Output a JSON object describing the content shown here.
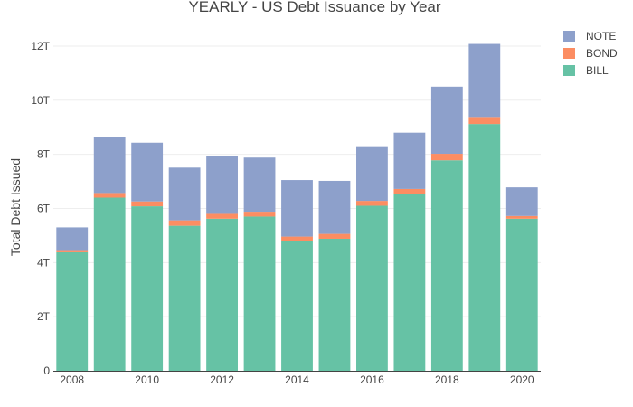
{
  "chart_data": {
    "type": "bar",
    "stacked": true,
    "title": "YEARLY - US Debt Issuance by Year",
    "xlabel": "",
    "ylabel": "Total Debt Issued",
    "categories": [
      "2008",
      "2009",
      "2010",
      "2011",
      "2012",
      "2013",
      "2014",
      "2015",
      "2016",
      "2017",
      "2018",
      "2019",
      "2020"
    ],
    "x_tick_labels": [
      "2008",
      "2010",
      "2012",
      "2014",
      "2016",
      "2018",
      "2020"
    ],
    "y_tick_labels": [
      "0",
      "2T",
      "4T",
      "6T",
      "8T",
      "10T",
      "12T"
    ],
    "y_tick_values": [
      0,
      2,
      4,
      6,
      8,
      10,
      12
    ],
    "ylim": [
      0,
      12.7
    ],
    "grid": true,
    "legend_position": "top-right",
    "series": [
      {
        "name": "BILL",
        "color": "#66c2a5",
        "values": [
          4.38,
          6.4,
          6.08,
          5.36,
          5.62,
          5.7,
          4.78,
          4.88,
          6.1,
          6.55,
          7.78,
          9.12,
          5.62
        ]
      },
      {
        "name": "BOND",
        "color": "#fc8d62",
        "values": [
          0.08,
          0.17,
          0.18,
          0.2,
          0.18,
          0.18,
          0.18,
          0.18,
          0.18,
          0.17,
          0.24,
          0.26,
          0.1
        ]
      },
      {
        "name": "NOTE",
        "color": "#8da0cb",
        "values": [
          0.84,
          2.07,
          2.17,
          1.95,
          2.14,
          2.0,
          2.09,
          1.96,
          2.02,
          2.08,
          2.48,
          2.7,
          1.06
        ]
      }
    ],
    "legend_order": [
      "NOTE",
      "BOND",
      "BILL"
    ]
  }
}
